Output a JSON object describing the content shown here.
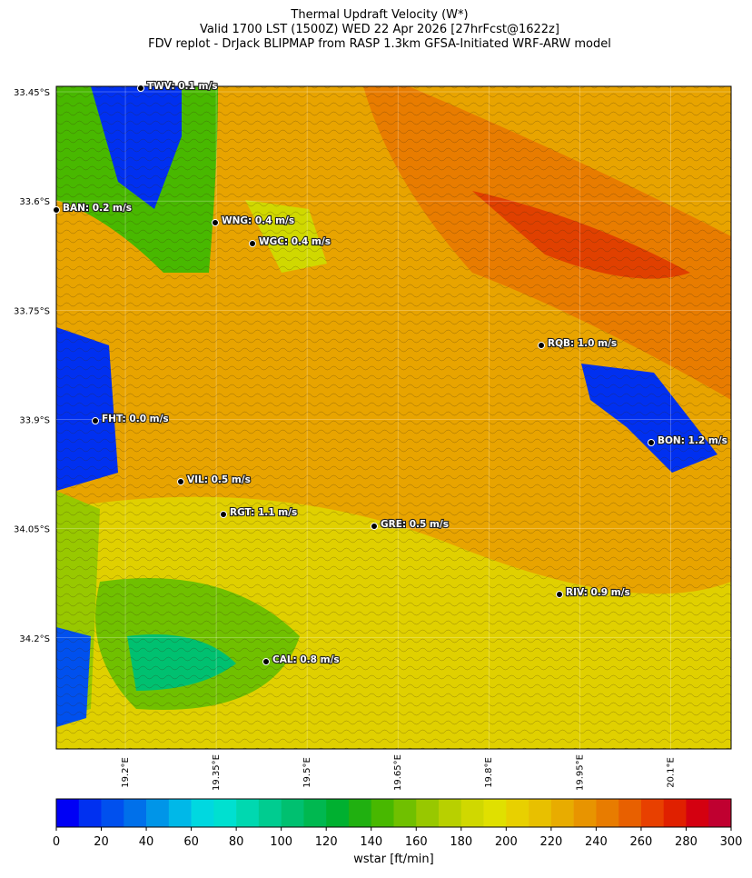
{
  "title_lines": [
    "Thermal Updraft Velocity (W*)",
    "Valid 1700 LST (1500Z) WED 22 Apr 2026 [27hrFcst@1622z]",
    "FDV replot - DrJack BLIPMAP from RASP 1.3km GFSA-Initiated WRF-ARW model"
  ],
  "map": {
    "xlim": [
      19.086,
      20.2
    ],
    "ylim": [
      -34.3526,
      -33.4425
    ],
    "xticks": [
      {
        "value": 19.2,
        "label": "19.2°E"
      },
      {
        "value": 19.35,
        "label": "19.35°E"
      },
      {
        "value": 19.5,
        "label": "19.5°E"
      },
      {
        "value": 19.65,
        "label": "19.65°E"
      },
      {
        "value": 19.8,
        "label": "19.8°E"
      },
      {
        "value": 19.95,
        "label": "19.95°E"
      },
      {
        "value": 20.1,
        "label": "20.1°E"
      }
    ],
    "yticks": [
      {
        "value": -33.45,
        "label": "33.45°S"
      },
      {
        "value": -33.6,
        "label": "33.6°S"
      },
      {
        "value": -33.75,
        "label": "33.75°S"
      },
      {
        "value": -33.9,
        "label": "33.9°S"
      },
      {
        "value": -34.05,
        "label": "34.05°S"
      },
      {
        "value": -34.2,
        "label": "34.2°S"
      }
    ],
    "stations": [
      "TWV: 0.1 m/s",
      "BAN: 0.2 m/s",
      "WNG: 0.4 m/s",
      "WGC: 0.4 m/s",
      "RQB: 1.0 m/s",
      "FHT: 0.0 m/s",
      "BON: 1.2 m/s",
      "VIL: 0.5 m/s",
      "RGT: 1.1 m/s",
      "GRE: 0.5 m/s",
      "RIV: 0.9 m/s",
      "CAL: 0.8 m/s"
    ]
  },
  "colorbar": {
    "label": "wstar [ft/min]",
    "lim": [
      0,
      300
    ],
    "ticks": [
      0,
      20,
      40,
      60,
      80,
      100,
      120,
      140,
      160,
      180,
      200,
      220,
      240,
      260,
      280,
      300
    ],
    "colors": [
      "#0000f5",
      "#0030f0",
      "#0050ee",
      "#0070ea",
      "#0095e8",
      "#00b8e8",
      "#00d8e0",
      "#00e0d0",
      "#00d8b0",
      "#00cc90",
      "#00c070",
      "#00b850",
      "#00b030",
      "#20b010",
      "#48b800",
      "#70c000",
      "#98c800",
      "#b8d000",
      "#d0d800",
      "#e0e000",
      "#e8d000",
      "#e8c000",
      "#e8ac00",
      "#e89400",
      "#e87c00",
      "#e86000",
      "#e84000",
      "#e02000",
      "#d40010",
      "#c00030"
    ]
  }
}
